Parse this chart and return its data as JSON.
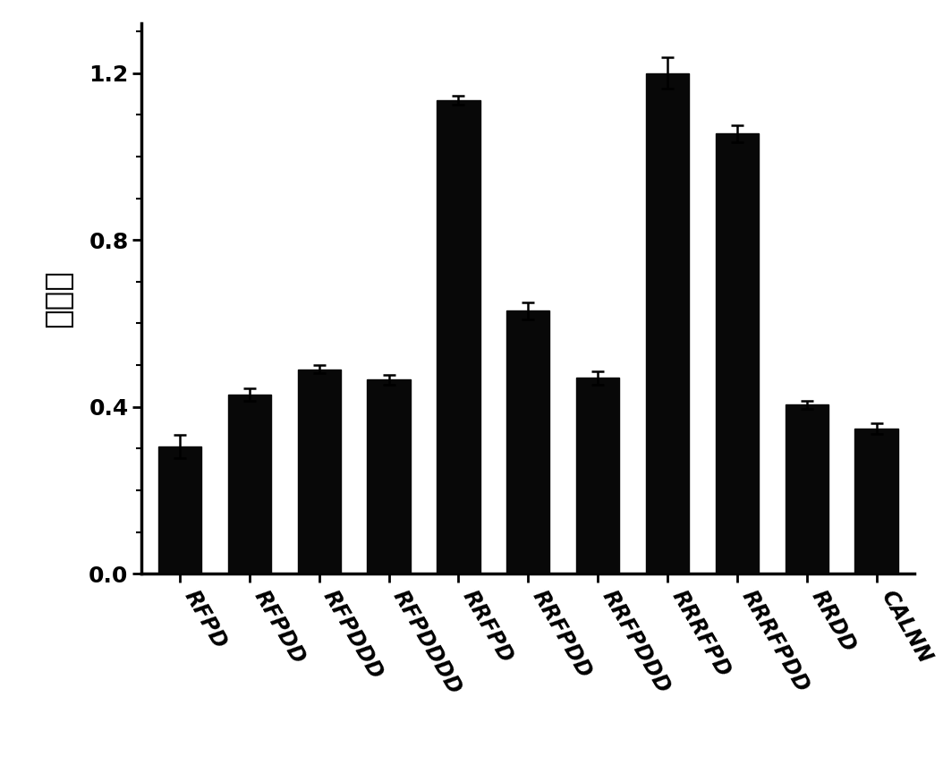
{
  "categories": [
    "RFPD",
    "RFPDD",
    "RFPDDD",
    "RFPDDDD",
    "RRFPD",
    "RRFPDD",
    "RRFPDDD",
    "RRRFPD",
    "RRRFPDD",
    "RRDD",
    "CALNN"
  ],
  "values": [
    0.305,
    0.43,
    0.49,
    0.465,
    1.135,
    0.63,
    0.47,
    1.2,
    1.055,
    0.405,
    0.348
  ],
  "errors": [
    0.028,
    0.015,
    0.01,
    0.012,
    0.01,
    0.02,
    0.016,
    0.038,
    0.02,
    0.01,
    0.013
  ],
  "bar_color": "#080808",
  "ylabel": "吸光度",
  "ylim": [
    0.0,
    1.32
  ],
  "yticks": [
    0.0,
    0.4,
    0.8,
    1.2
  ],
  "figure_bg": "#ffffff",
  "axes_bg": "#ffffff",
  "bar_width": 0.62,
  "ylabel_fontsize": 26,
  "tick_fontsize": 17
}
